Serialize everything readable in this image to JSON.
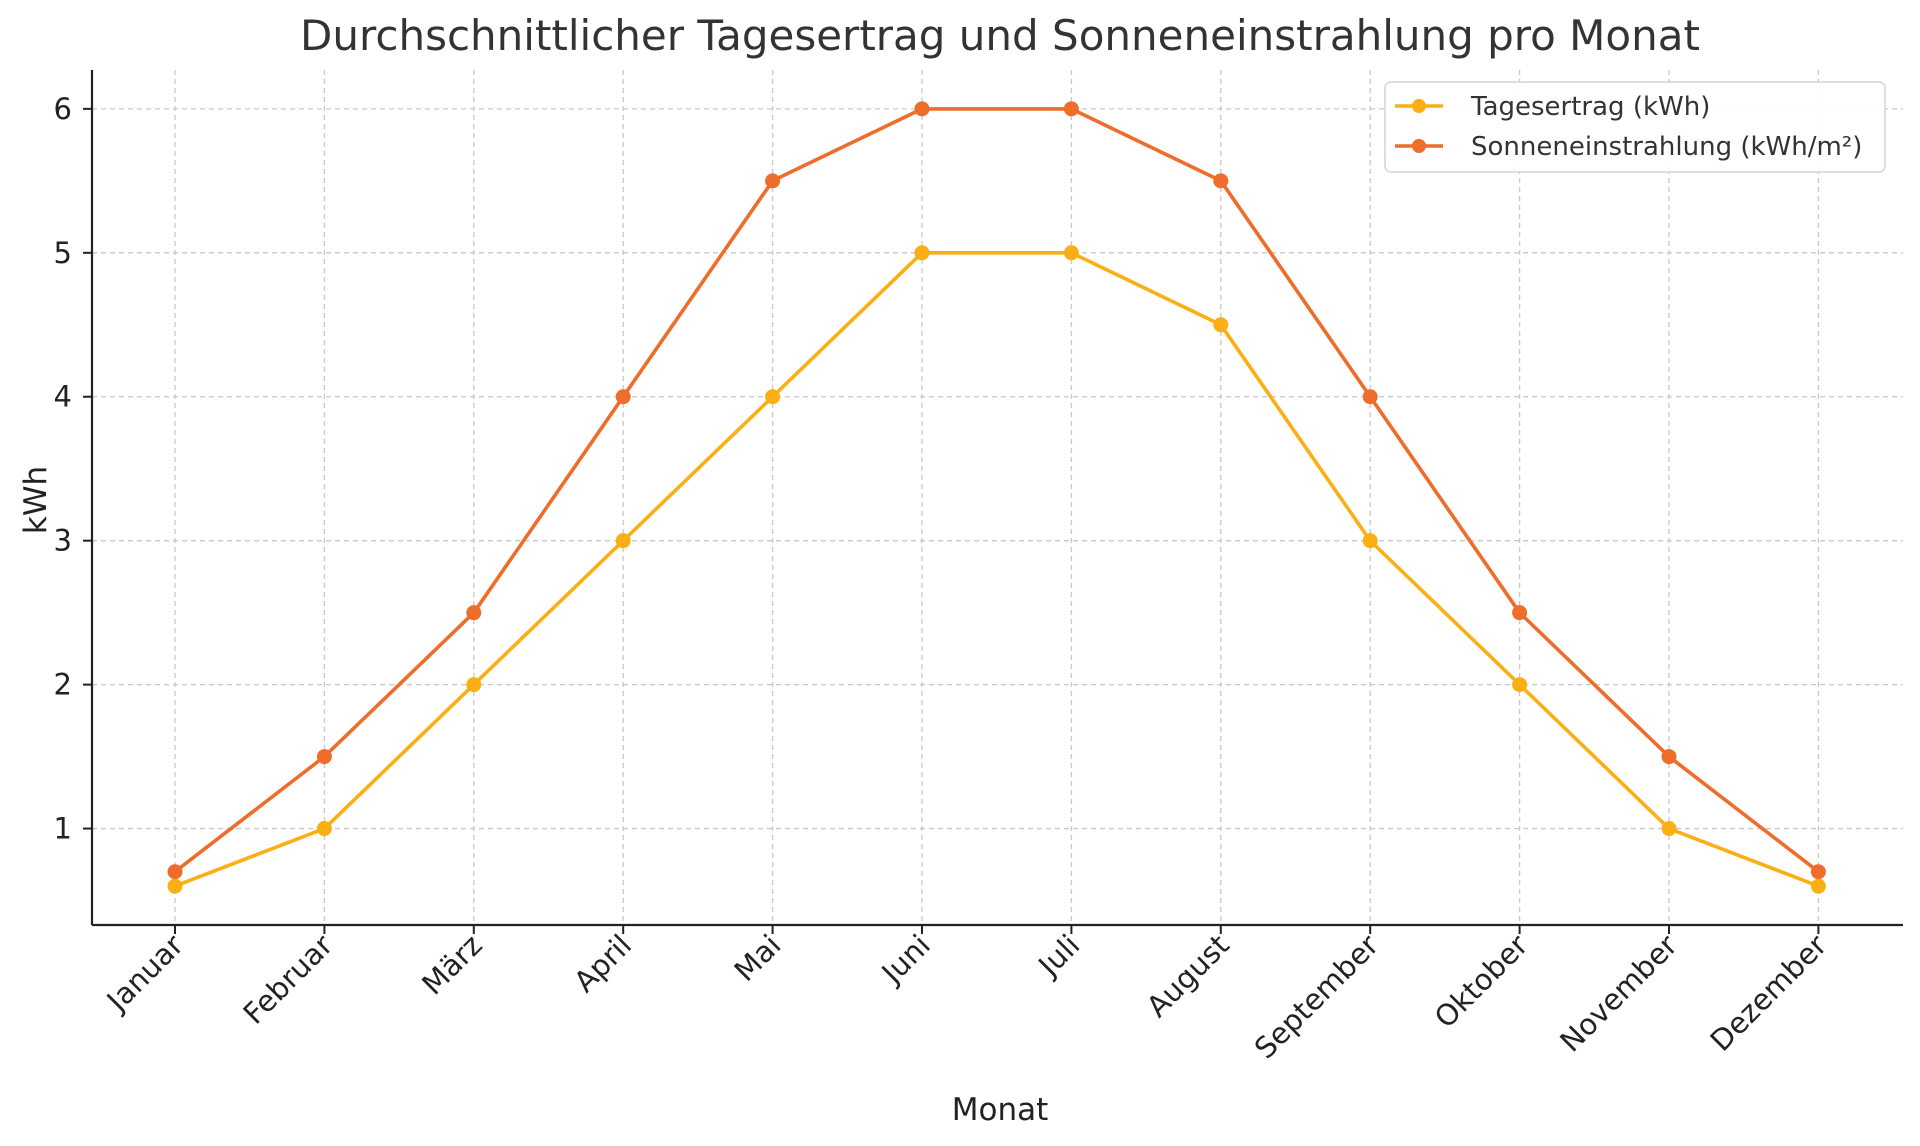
{
  "chart_data": {
    "type": "line",
    "title": "Durchschnittlicher Tagesertrag und Sonneneinstrahlung pro Monat",
    "xlabel": "Monat",
    "ylabel": "kWh",
    "categories": [
      "Januar",
      "Februar",
      "März",
      "April",
      "Mai",
      "Juni",
      "Juli",
      "August",
      "September",
      "Oktober",
      "November",
      "Dezember"
    ],
    "ylim": [
      0.33,
      6.27
    ],
    "yticks": [
      1,
      2,
      3,
      4,
      5,
      6
    ],
    "grid": true,
    "legend_position": "top-right",
    "series": [
      {
        "name": "Tagesertrag (kWh)",
        "color": "#FBAF15",
        "values": [
          0.6,
          1.0,
          2.0,
          3.0,
          4.0,
          5.0,
          5.0,
          4.5,
          3.0,
          2.0,
          1.0,
          0.6
        ]
      },
      {
        "name": "Sonneneinstrahlung (kWh/m²)",
        "color": "#EE6D2A",
        "values": [
          0.7,
          1.5,
          2.5,
          4.0,
          5.5,
          6.0,
          6.0,
          5.5,
          4.0,
          2.5,
          1.5,
          0.7
        ]
      }
    ]
  }
}
